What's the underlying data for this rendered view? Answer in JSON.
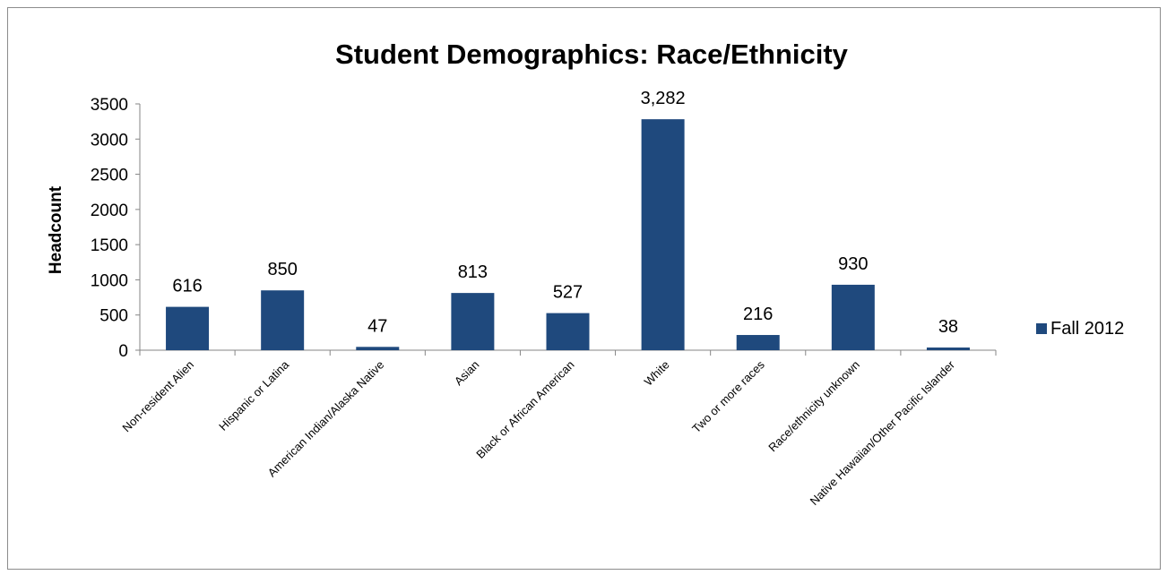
{
  "chart_data": {
    "type": "bar",
    "title": "Student Demographics: Race/Ethnicity",
    "xlabel": "",
    "ylabel": "Headcount",
    "categories": [
      "Non-resident Alien",
      "Hispanic or Latina",
      "American Indian/Alaska Native",
      "Asian",
      "Black or African American",
      "White",
      "Two or more races",
      "Race/ethnicity unknown",
      "Native Hawaiian/Other Pacific Islander"
    ],
    "series": [
      {
        "name": "Fall 2012",
        "values": [
          616,
          850,
          47,
          813,
          527,
          3282,
          216,
          930,
          38
        ],
        "data_labels": [
          "616",
          "850",
          "47",
          "813",
          "527",
          "3,282",
          "216",
          "930",
          "38"
        ]
      }
    ],
    "ylim": [
      0,
      3500
    ],
    "yticks": [
      "0",
      "500",
      "1000",
      "1500",
      "2000",
      "2500",
      "3000",
      "3500"
    ],
    "grid": false,
    "legend_position": "right",
    "colors": {
      "bar": "#1f497d",
      "axis": "#868686",
      "text": "#000000"
    }
  }
}
